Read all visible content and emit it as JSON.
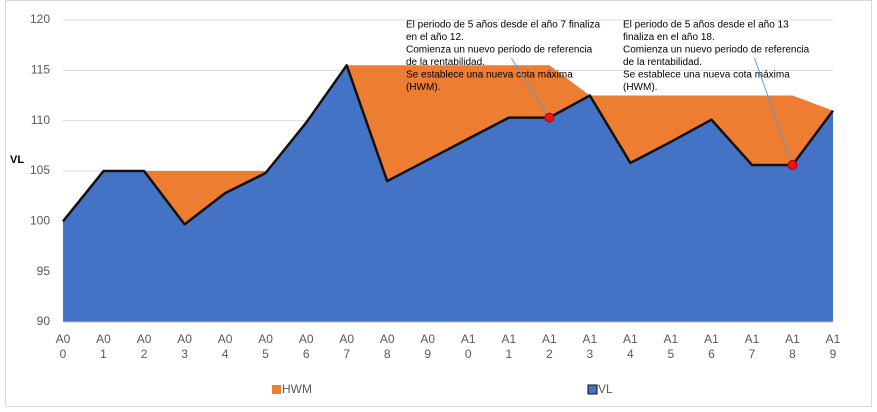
{
  "chart_data": {
    "type": "area",
    "y_label": "VL",
    "categories": [
      "A00",
      "A01",
      "A02",
      "A03",
      "A04",
      "A05",
      "A06",
      "A07",
      "A08",
      "A09",
      "A10",
      "A11",
      "A12",
      "A13",
      "A14",
      "A15",
      "A16",
      "A17",
      "A18",
      "A19"
    ],
    "series": [
      {
        "name": "HWM",
        "color": "#ed7d31",
        "values": [
          100,
          105,
          105,
          105,
          105,
          105,
          109.8,
          115.5,
          115.5,
          115.5,
          115.5,
          115.5,
          115.5,
          112.5,
          112.5,
          112.5,
          112.5,
          112.5,
          112.5,
          111
        ]
      },
      {
        "name": "VL",
        "color": "#4472c4",
        "values": [
          100,
          105,
          105,
          99.7,
          102.8,
          104.8,
          109.8,
          115.5,
          104,
          106.1,
          108.2,
          110.3,
          110.3,
          112.5,
          105.8,
          107.9,
          110.1,
          105.6,
          105.6,
          111
        ]
      }
    ],
    "ylim": [
      90,
      120
    ],
    "yticks": [
      90,
      95,
      100,
      105,
      110,
      115,
      120
    ],
    "grid": true,
    "annotations": [
      {
        "point": 12,
        "lines": [
          "El periodo de 5 años desde el año 7 finaliza",
          "en el año 12.",
          "Comienza un nuevo periodo de referencia",
          "de la rentabilidad.",
          "Se establece una nueva cota máxima",
          "(HWM)."
        ]
      },
      {
        "point": 18,
        "lines": [
          "El periodo de 5 años desde el año 13",
          "finaliza en el año 18.",
          "Comienza un nuevo periodo de referencia",
          "de la rentabilidad.",
          "Se establece una nueva cota máxima",
          "(HWM)."
        ]
      }
    ]
  }
}
